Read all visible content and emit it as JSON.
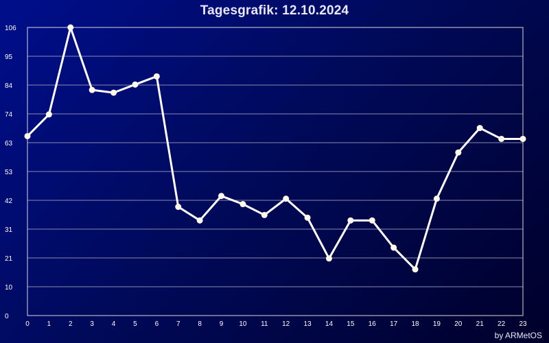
{
  "chart_data": {
    "type": "line",
    "title": "Tagesgrafik: 12.10.2024",
    "xlabel": "",
    "ylabel": "",
    "x": [
      0,
      1,
      2,
      3,
      4,
      5,
      6,
      7,
      8,
      9,
      10,
      11,
      12,
      13,
      14,
      15,
      16,
      17,
      18,
      19,
      20,
      21,
      22,
      23
    ],
    "y_ticks": [
      0,
      10,
      21,
      31,
      42,
      53,
      63,
      74,
      84,
      95,
      106
    ],
    "ylim": [
      0,
      106
    ],
    "xlim": [
      0,
      23
    ],
    "grid": true,
    "series": [
      {
        "values": [
          66,
          74,
          106,
          83,
          82,
          85,
          88,
          40,
          35,
          44,
          41,
          37,
          43,
          36,
          21,
          35,
          35,
          25,
          17,
          43,
          60,
          69,
          65,
          65
        ]
      }
    ],
    "colors": {
      "line": "#ffffff",
      "marker": "#fffbe8",
      "grid": "#8a8ab0",
      "frame": "#d8d8d8"
    }
  },
  "footer": {
    "credit": "by ARMetOS"
  }
}
